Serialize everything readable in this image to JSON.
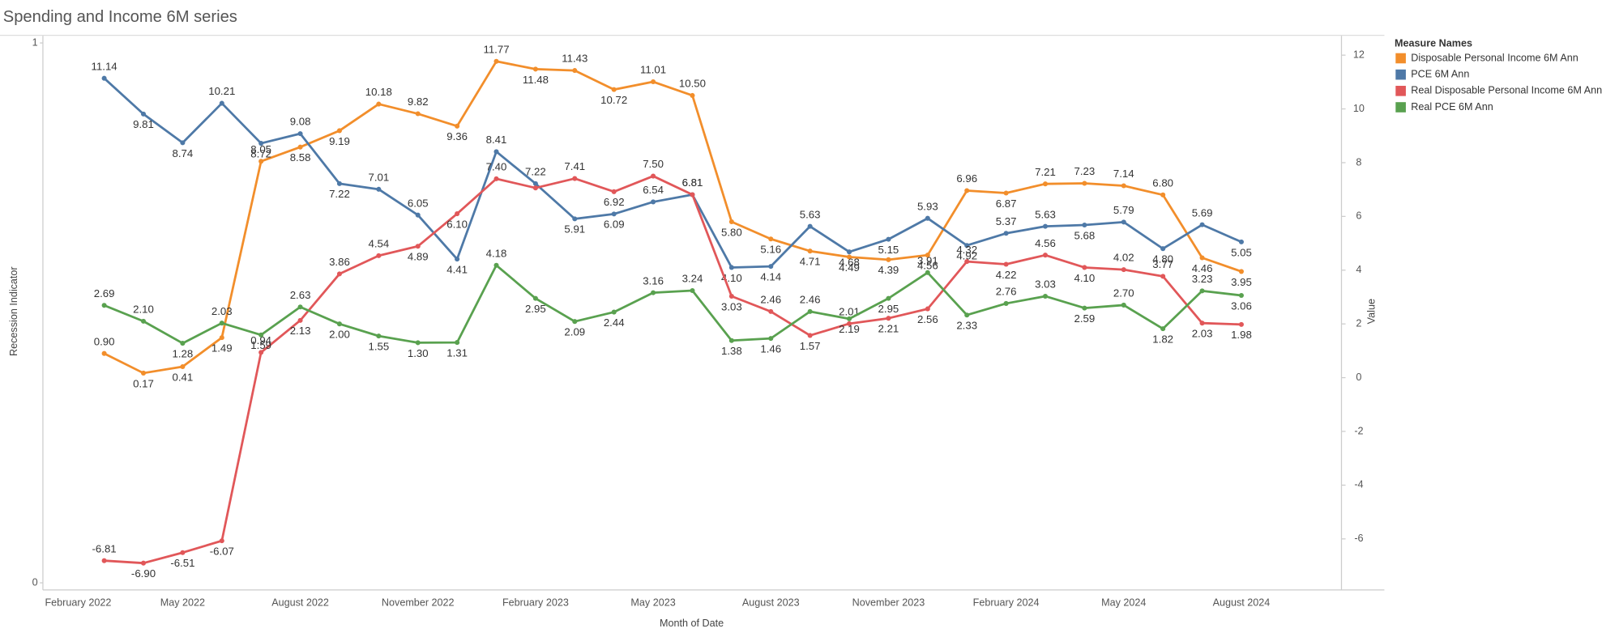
{
  "chart_data": {
    "type": "line",
    "title": "Spending and Income 6M series",
    "x_label": "Month of Date",
    "y_label": "Recession Indicator",
    "y2_label": "Value",
    "legend_title": "Measure Names",
    "legend": "right",
    "grid": false,
    "categories": [
      "February 2022",
      null,
      null,
      "May 2022",
      null,
      null,
      "August 2022",
      null,
      null,
      "November 2022",
      null,
      null,
      "February 2023",
      null,
      null,
      "May 2023",
      null,
      null,
      "August 2023",
      null,
      null,
      "November 2023",
      null,
      null,
      "February 2024",
      null,
      null,
      "May 2024",
      null,
      null,
      "August 2024"
    ],
    "ylim": [
      0,
      1
    ],
    "yticks": [
      0,
      1
    ],
    "y2lim": [
      -7.9,
      12.72
    ],
    "y2ticks": [
      -6,
      -4,
      -2,
      0,
      2,
      4,
      6,
      8,
      10,
      12
    ],
    "series": [
      {
        "name": "Disposable Personal Income 6M Ann",
        "color": "#f28e2b",
        "axis": "y2",
        "values": [
          null,
          0.9,
          0.17,
          0.41,
          1.49,
          8.05,
          8.58,
          9.19,
          10.18,
          9.82,
          9.36,
          11.77,
          11.48,
          11.43,
          10.72,
          11.01,
          10.5,
          5.8,
          5.16,
          4.71,
          4.49,
          4.39,
          4.56,
          6.96,
          6.87,
          7.21,
          7.23,
          7.14,
          6.8,
          4.46,
          3.95
        ],
        "value_labels": [
          null,
          "0.90",
          "0.17",
          "0.41",
          "1.49",
          "8.05",
          "8.58",
          "9.19",
          "10.18",
          "9.82",
          "9.36",
          "11.77",
          "11.48",
          "11.43",
          "10.72",
          "11.01",
          "10.50",
          "5.80",
          "5.16",
          "4.71",
          "4.49",
          "4.39",
          "4.56",
          "6.96",
          "6.87",
          "7.21",
          "7.23",
          "7.14",
          "6.80",
          "4.46",
          "3.95"
        ]
      },
      {
        "name": "PCE 6M Ann",
        "color": "#4e79a7",
        "axis": "y2",
        "values": [
          null,
          11.14,
          9.81,
          8.74,
          10.21,
          8.72,
          9.08,
          7.22,
          7.01,
          6.05,
          4.41,
          8.41,
          7.22,
          5.91,
          6.09,
          6.54,
          6.81,
          4.1,
          4.14,
          5.63,
          4.68,
          5.15,
          5.93,
          4.92,
          5.37,
          5.63,
          5.68,
          5.79,
          4.8,
          5.69,
          5.05
        ],
        "value_labels": [
          null,
          "11.14",
          "9.81",
          "8.74",
          "10.21",
          "8.72",
          "9.08",
          "7.22",
          "7.01",
          "6.05",
          "4.41",
          "8.41",
          "7.22",
          "5.91",
          "6.09",
          "6.54",
          "6.81",
          "4.10",
          "4.14",
          "5.63",
          "4.68",
          "5.15",
          "5.93",
          "4.92",
          "5.37",
          "5.63",
          "5.68",
          "5.79",
          "4.80",
          "5.69",
          "5.05"
        ]
      },
      {
        "name": "Real Disposable Personal Income 6M Ann",
        "color": "#e15759",
        "axis": "y2",
        "values": [
          null,
          -6.81,
          -6.9,
          -6.51,
          -6.07,
          0.94,
          2.13,
          3.86,
          4.54,
          4.89,
          6.1,
          7.4,
          7.06,
          7.41,
          6.92,
          7.5,
          6.81,
          3.03,
          2.46,
          1.57,
          2.01,
          2.21,
          2.56,
          4.32,
          4.22,
          4.56,
          4.1,
          4.02,
          3.77,
          2.03,
          1.98
        ],
        "value_labels": [
          null,
          "-6.81",
          "-6.90",
          "-6.51",
          "-6.07",
          "0.94",
          "2.13",
          "3.86",
          "4.54",
          "4.89",
          "6.10",
          "7.40",
          null,
          "7.41",
          "6.92",
          "7.50",
          "6.81",
          "3.03",
          "2.46",
          "1.57",
          "2.01",
          "2.21",
          "2.56",
          "4.32",
          "4.22",
          "4.56",
          "4.10",
          "4.02",
          "3.77",
          "2.03",
          "1.98"
        ]
      },
      {
        "name": "Real PCE 6M Ann",
        "color": "#59a14f",
        "axis": "y2",
        "values": [
          null,
          2.69,
          2.1,
          1.28,
          2.03,
          1.59,
          2.63,
          2.0,
          1.55,
          1.3,
          1.31,
          4.18,
          2.95,
          2.09,
          2.44,
          3.16,
          3.24,
          1.38,
          1.46,
          2.46,
          2.19,
          2.95,
          3.91,
          2.33,
          2.76,
          3.03,
          2.59,
          2.7,
          1.82,
          3.23,
          3.06
        ],
        "value_labels": [
          null,
          "2.69",
          "2.10",
          "1.28",
          "2.03",
          "1.59",
          "2.63",
          "2.00",
          "1.55",
          "1.30",
          "1.31",
          "4.18",
          "2.95",
          "2.09",
          "2.44",
          "3.16",
          "3.24",
          "1.38",
          "1.46",
          "2.46",
          "2.19",
          "2.95",
          "3.91",
          "2.33",
          "2.76",
          "3.03",
          "2.59",
          "2.70",
          "1.82",
          "3.23",
          "3.06"
        ]
      }
    ]
  }
}
